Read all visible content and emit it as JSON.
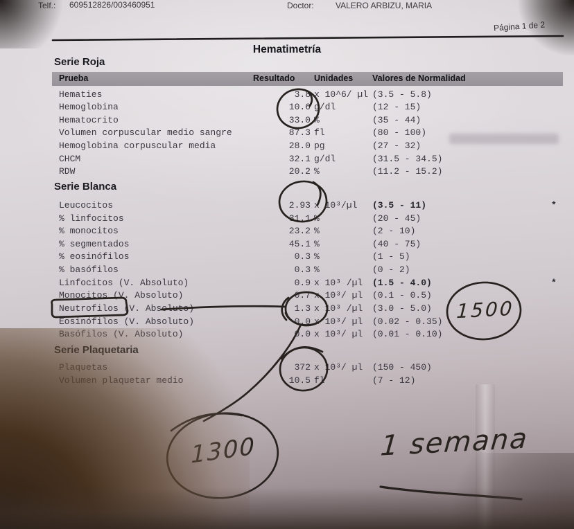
{
  "header": {
    "telf_label": "Telf.:",
    "telf_value": "609512826/003460951",
    "doctor_label": "Doctor:",
    "doctor_value": "VALERO ARBIZU, MARIA",
    "page": "Página 1 de 2"
  },
  "title": "Hematimetría",
  "columns": {
    "prueba": "Prueba",
    "resultado": "Resultado",
    "unidades": "Unidades",
    "valores": "Valores de Normalidad"
  },
  "sections": [
    {
      "name": "Serie Roja",
      "rows": [
        {
          "test": "Hematies",
          "result": "3.8",
          "units": "x 10^6/ µl",
          "range": "(3.5 - 5.8)"
        },
        {
          "test": "Hemoglobina",
          "result": "10.6",
          "units": "g/dl",
          "range": "(12 - 15)"
        },
        {
          "test": "Hematocrito",
          "result": "33.0",
          "units": "%",
          "range": "(35 - 44)"
        },
        {
          "test": "Volumen corpuscular medio sangre",
          "result": "87.3",
          "units": "fl",
          "range": "(80 - 100)"
        },
        {
          "test": "Hemoglobina corpuscular media",
          "result": "28.0",
          "units": "pg",
          "range": "(27 - 32)"
        },
        {
          "test": "CHCM",
          "result": "32.1",
          "units": "g/dl",
          "range": "(31.5 - 34.5)"
        },
        {
          "test": "RDW",
          "result": "20.2",
          "units": "%",
          "range": "(11.2 - 15.2)"
        }
      ]
    },
    {
      "name": "Serie Blanca",
      "rows": [
        {
          "test": "Leucocitos",
          "result": "2.93",
          "units": "x 10³/µl",
          "range": "(3.5 - 11)",
          "bold_range": true,
          "flag": "*"
        },
        {
          "test": "% linfocitos",
          "result": "31.1",
          "units": "%",
          "range": "(20 - 45)"
        },
        {
          "test": "% monocitos",
          "result": "23.2",
          "units": "%",
          "range": "(2 - 10)"
        },
        {
          "test": "% segmentados",
          "result": "45.1",
          "units": "%",
          "range": "(40 - 75)"
        },
        {
          "test": "% eosinófilos",
          "result": "0.3",
          "units": "%",
          "range": "(1 - 5)"
        },
        {
          "test": "% basófilos",
          "result": "0.3",
          "units": "%",
          "range": "(0 - 2)"
        },
        {
          "test": "Linfocitos (V. Absoluto)",
          "result": "0.9",
          "units": "x 10³ /µl",
          "range": "(1.5 - 4.0)",
          "bold_range": true,
          "flag": "*"
        },
        {
          "test": "Monocitos (V. Absoluto)",
          "result": "0.7",
          "units": "x 10³/ µl",
          "range": "(0.1 - 0.5)"
        },
        {
          "test": "Neutrofilos (V. Absoluto)",
          "result": "1.3",
          "units": "x 10³ /µl",
          "range": "(3.0 - 5.0)"
        },
        {
          "test": "Eosinófilos (V. Absoluto)",
          "result": "0.0",
          "units": "x 10³/ µl",
          "range": "(0.02 - 0.35)"
        },
        {
          "test": "Basófilos (V. Absoluto)",
          "result": "0.0",
          "units": "x 10³/ µl",
          "range": "(0.01 - 0.10)"
        }
      ]
    },
    {
      "name": "Serie Plaquetaria",
      "rows": [
        {
          "test": "Plaquetas",
          "result": "372",
          "units": "x 10³/ µl",
          "range": "(150 - 450)"
        },
        {
          "test": "Volumen plaquetar medio",
          "result": "10.5",
          "units": "fl",
          "range": "(7 - 12)"
        }
      ]
    }
  ],
  "annotations": {
    "circled_value_right": "1500",
    "circled_value_bottom": "1300",
    "note": "1 semana"
  },
  "colors": {
    "paper": "#d7d1d5",
    "header_bar": "#9c979b",
    "ink_print": "#3a3640",
    "ink_pen": "#27221f"
  }
}
